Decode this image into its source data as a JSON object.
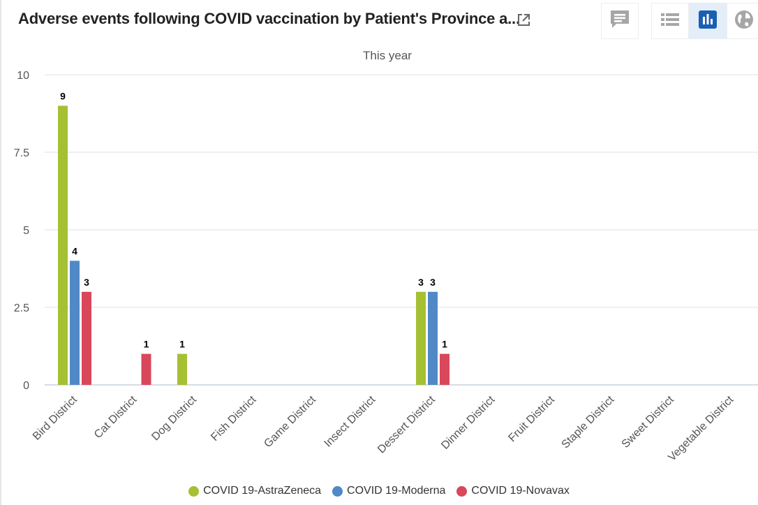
{
  "header": {
    "title": "Adverse events following COVID vaccination by Patient's Province a...",
    "icons": {
      "external_link": "external-link-icon",
      "comment": "comment-icon",
      "list": "list-icon",
      "bar_chart": "bar-chart-icon",
      "globe": "globe-icon"
    },
    "active_view": "chart"
  },
  "colors": {
    "accent": "#1a5fb4",
    "active_bg": "#e3eef9",
    "icon_gray": "#a6a6a6"
  },
  "chart_data": {
    "type": "bar",
    "subtitle": "This year",
    "categories": [
      "Bird District",
      "Cat District",
      "Dog District",
      "Fish District",
      "Game District",
      "Insect District",
      "Dessert District",
      "Dinner District",
      "Fruit District",
      "Staple District",
      "Sweet District",
      "Vegetable District"
    ],
    "series": [
      {
        "name": "COVID 19-AstraZeneca",
        "color": "#a5c033",
        "values": [
          9,
          null,
          1,
          null,
          null,
          null,
          3,
          null,
          null,
          null,
          null,
          null
        ]
      },
      {
        "name": "COVID 19-Moderna",
        "color": "#5089c6",
        "values": [
          4,
          null,
          null,
          null,
          null,
          null,
          3,
          null,
          null,
          null,
          null,
          null
        ]
      },
      {
        "name": "COVID 19-Novavax",
        "color": "#d9475a",
        "values": [
          3,
          1,
          null,
          null,
          null,
          null,
          1,
          null,
          null,
          null,
          null,
          null
        ]
      }
    ],
    "ylim": [
      0,
      10
    ],
    "yticks": [
      0,
      2.5,
      5,
      7.5,
      10
    ],
    "ytick_labels": [
      "0",
      "2.5",
      "5",
      "7.5",
      "10"
    ],
    "grid": true,
    "legend_position": "bottom-center",
    "data_labels": true
  }
}
